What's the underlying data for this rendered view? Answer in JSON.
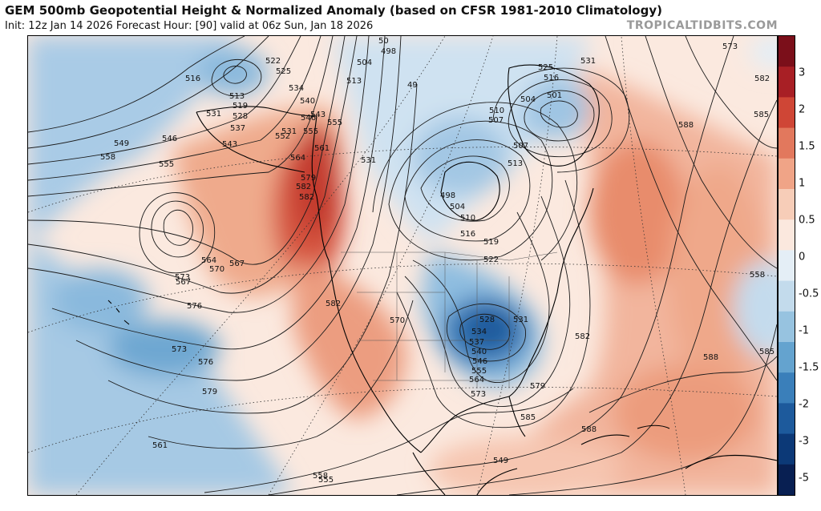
{
  "header": {
    "title": "GEM 500mb Geopotential Height & Normalized Anomaly (based on CFSR 1981-2010 Climatology)",
    "subtitle": "Init: 12z Jan 14 2026   Forecast Hour: [90]   valid at 06z Sun, Jan 18 2026",
    "brand": "TROPICALTIDBITS.COM"
  },
  "colorbar": {
    "labels": [
      "3",
      "2",
      "1.5",
      "1",
      "0.5",
      "0",
      "-0.5",
      "-1",
      "-1.5",
      "-2",
      "-3",
      "-5"
    ],
    "colors": [
      "#7b0f1a",
      "#a81f25",
      "#cf4636",
      "#e2785d",
      "#f0a487",
      "#f7cdb8",
      "#fbe8de",
      "#e4eef6",
      "#c3dbec",
      "#97c3e0",
      "#64a3cf",
      "#3a7fba",
      "#1d5a9c",
      "#0c3977",
      "#081f52"
    ]
  },
  "contour_labels": [
    "516",
    "513",
    "519",
    "531",
    "528",
    "537",
    "522",
    "525",
    "534",
    "540",
    "549",
    "546",
    "543",
    "555",
    "552",
    "558",
    "561",
    "564",
    "567",
    "573",
    "576",
    "579",
    "504",
    "498",
    "50",
    "513",
    "49",
    "510",
    "507",
    "498",
    "504",
    "510",
    "516",
    "519",
    "522",
    "528",
    "531",
    "534",
    "537",
    "540",
    "546",
    "555",
    "564",
    "573",
    "579",
    "585",
    "588",
    "582",
    "570",
    "525",
    "531",
    "516",
    "501",
    "504",
    "507",
    "513",
    "573",
    "582",
    "585",
    "588",
    "582",
    "585",
    "588",
    "558",
    "555",
    "561",
    "564",
    "567",
    "570",
    "573",
    "576",
    "579",
    "582",
    "582",
    "558",
    "549",
    "546",
    "543",
    "555",
    "531"
  ]
}
